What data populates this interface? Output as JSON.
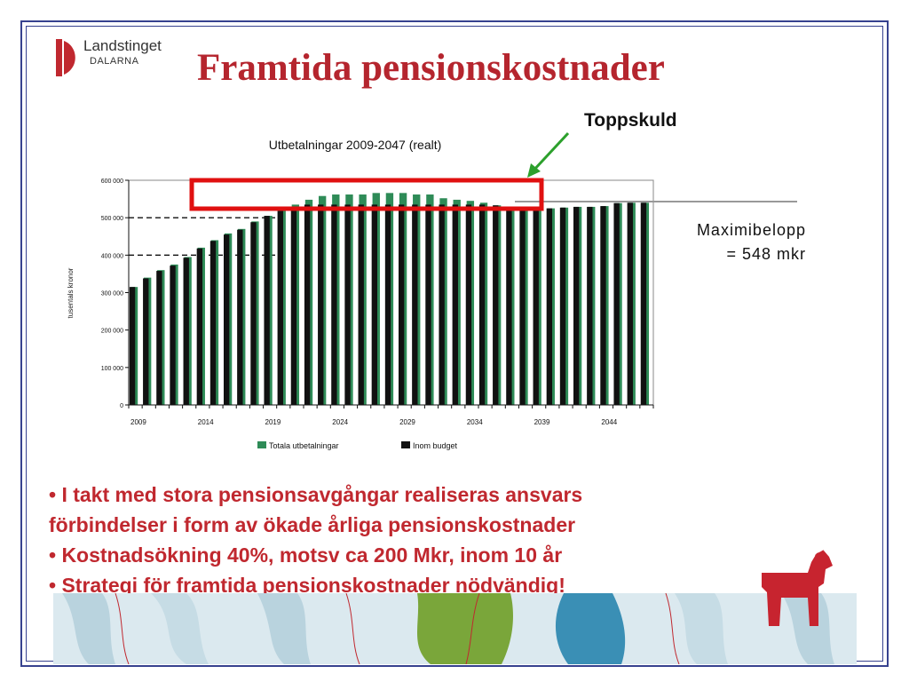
{
  "logo": {
    "line1": "Landstinget",
    "line2": "DALARNA"
  },
  "title": "Framtida pensionskostnader",
  "chart_data": {
    "type": "bar",
    "title": "Utbetalningar 2009-2047 (realt)",
    "ylabel": "tusentals kronor",
    "xlabel": "",
    "ylim": [
      0,
      600000
    ],
    "yticks": [
      "0",
      "100 000",
      "200 000",
      "300 000",
      "400 000",
      "500 000",
      "600 000"
    ],
    "xtick_labels": [
      "2009",
      "2014",
      "2019",
      "2024",
      "2029",
      "2034",
      "2039",
      "2044"
    ],
    "legend_position": "bottom",
    "categories": [
      2009,
      2010,
      2011,
      2012,
      2013,
      2014,
      2015,
      2016,
      2017,
      2018,
      2019,
      2020,
      2021,
      2022,
      2023,
      2024,
      2025,
      2026,
      2027,
      2028,
      2029,
      2030,
      2031,
      2032,
      2033,
      2034,
      2035,
      2036,
      2037,
      2038,
      2039,
      2040,
      2041,
      2042,
      2043,
      2044,
      2045,
      2046,
      2047
    ],
    "series": [
      {
        "name": "Totala utbetalningar",
        "color": "#2e8b57",
        "values": [
          315000,
          340000,
          360000,
          375000,
          395000,
          420000,
          440000,
          458000,
          470000,
          490000,
          505000,
          520000,
          535000,
          548000,
          558000,
          562000,
          562000,
          562000,
          566000,
          566000,
          566000,
          562000,
          562000,
          552000,
          548000,
          545000,
          540000,
          533000,
          530000,
          530000,
          527000,
          525000,
          527000,
          529000,
          529000,
          531000,
          539000,
          540000,
          540000
        ]
      },
      {
        "name": "Inom budget",
        "color": "#111111",
        "values": [
          315000,
          338000,
          358000,
          372000,
          393000,
          418000,
          438000,
          455000,
          468000,
          488000,
          505000,
          518000,
          530000,
          535000,
          535000,
          535000,
          535000,
          535000,
          535000,
          535000,
          535000,
          535000,
          535000,
          535000,
          535000,
          535000,
          535000,
          533000,
          530000,
          530000,
          527000,
          525000,
          527000,
          529000,
          529000,
          531000,
          539000,
          540000,
          540000
        ]
      }
    ],
    "reference_lines": [
      400000,
      500000
    ],
    "annotations": {
      "toppskuld": "Toppskuld",
      "max_line1": "Maximibelopp",
      "max_line2": "= 548 mkr"
    }
  },
  "bullets": [
    "• I takt med stora pensionsavgångar realiseras ansvars",
    "förbindelser i form av ökade årliga pensionskostnader",
    "• Kostnadsökning 40%, motsv ca 200 Mkr, inom 10 år",
    "• Strategi för framtida pensionskostnader nödvändig!"
  ],
  "colors": {
    "accent": "#c0282f",
    "frame": "#37428f",
    "bars_green": "#2e8b57",
    "bars_black": "#111111",
    "highlight": "#e01010",
    "arrow": "#2ca02c"
  }
}
